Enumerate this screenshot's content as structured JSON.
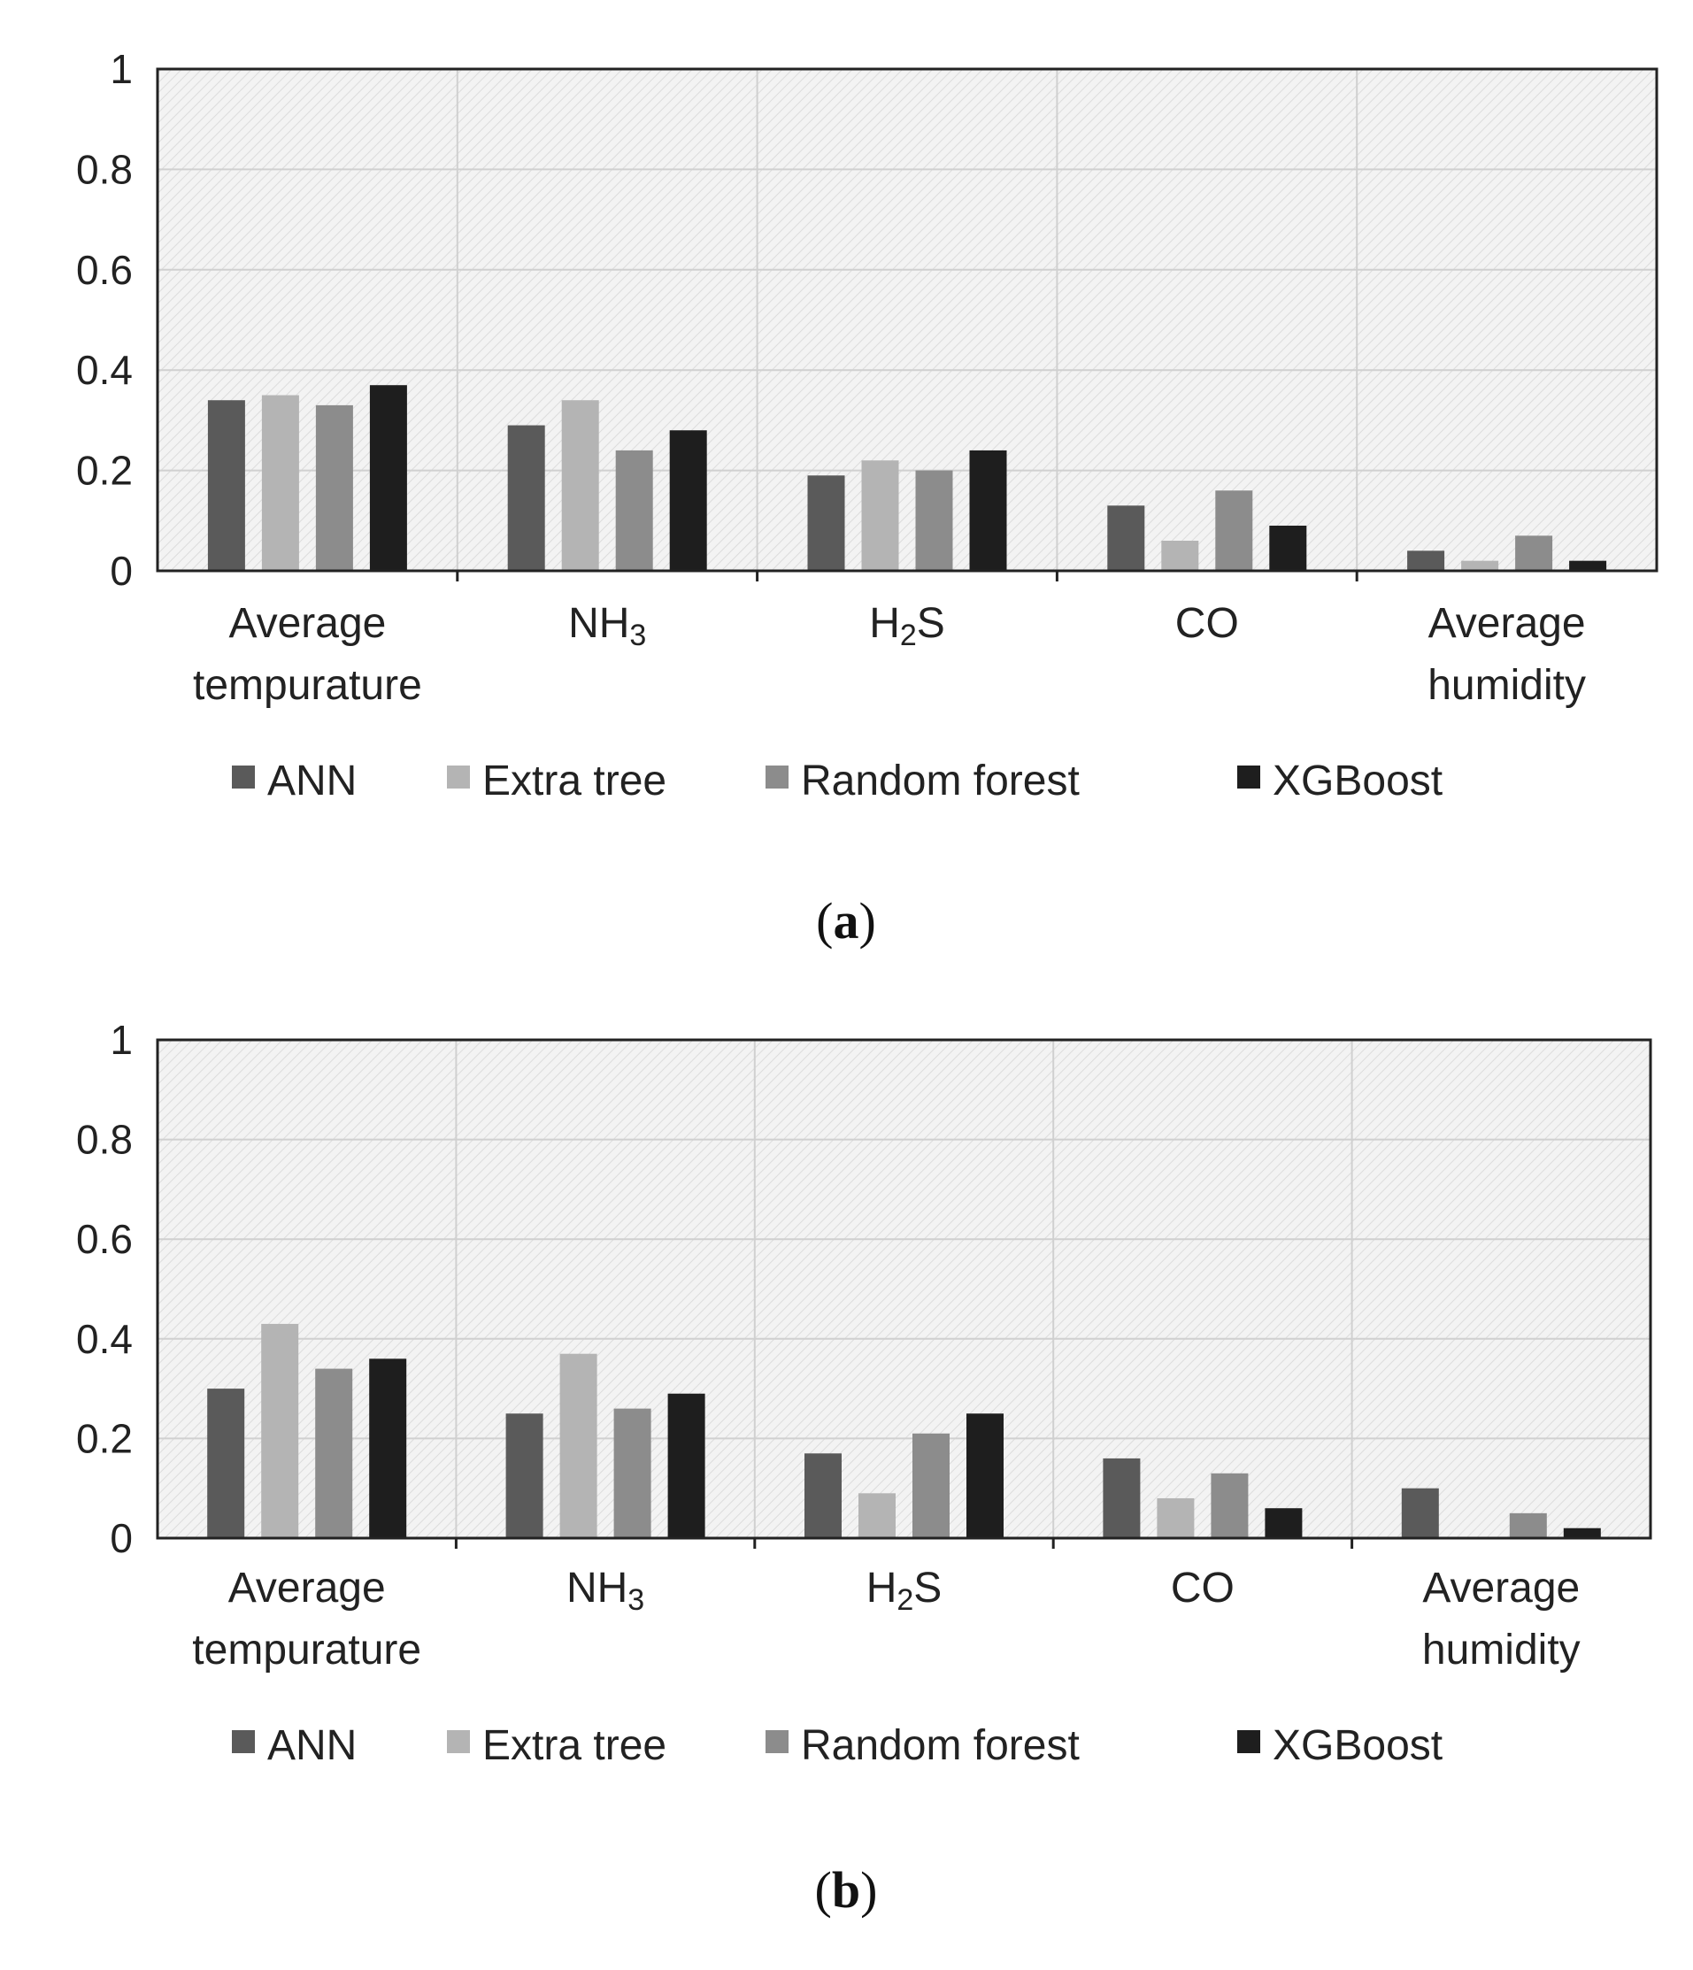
{
  "chart_data": [
    {
      "type": "bar",
      "panel_label": "a",
      "categories": [
        {
          "label": [
            "Average",
            "tempurature"
          ]
        },
        {
          "label": [
            "NH",
            "3"
          ],
          "subscript": true
        },
        {
          "label": [
            "H",
            "2",
            "S"
          ],
          "subscript": true
        },
        {
          "label": [
            "CO"
          ]
        },
        {
          "label": [
            "Average",
            "humidity"
          ]
        }
      ],
      "category_names": [
        "Average tempurature",
        "NH3",
        "H2S",
        "CO",
        "Average humidity"
      ],
      "ylim": [
        0,
        1
      ],
      "yticks": [
        "0",
        "0.2",
        "0.4",
        "0.6",
        "0.8",
        "1"
      ],
      "legend_position": "bottom",
      "grid": true,
      "series": [
        {
          "name": "ANN",
          "color": "#5a5a5a",
          "values": [
            0.34,
            0.29,
            0.19,
            0.13,
            0.04
          ]
        },
        {
          "name": "Extra tree",
          "color": "#b4b4b4",
          "values": [
            0.35,
            0.34,
            0.22,
            0.06,
            0.02
          ]
        },
        {
          "name": "Random forest",
          "color": "#8c8c8c",
          "values": [
            0.33,
            0.24,
            0.2,
            0.16,
            0.07
          ]
        },
        {
          "name": "XGBoost",
          "color": "#1e1e1e",
          "values": [
            0.37,
            0.28,
            0.24,
            0.09,
            0.02
          ]
        }
      ]
    },
    {
      "type": "bar",
      "panel_label": "b",
      "categories": [
        {
          "label": [
            "Average",
            "tempurature"
          ]
        },
        {
          "label": [
            "NH",
            "3"
          ],
          "subscript": true
        },
        {
          "label": [
            "H",
            "2",
            "S"
          ],
          "subscript": true
        },
        {
          "label": [
            "CO"
          ]
        },
        {
          "label": [
            "Average",
            "humidity"
          ]
        }
      ],
      "category_names": [
        "Average tempurature",
        "NH3",
        "H2S",
        "CO",
        "Average humidity"
      ],
      "ylim": [
        0,
        1
      ],
      "yticks": [
        "0",
        "0.2",
        "0.4",
        "0.6",
        "0.8",
        "1"
      ],
      "legend_position": "bottom",
      "grid": true,
      "series": [
        {
          "name": "ANN",
          "color": "#5a5a5a",
          "values": [
            0.3,
            0.25,
            0.17,
            0.16,
            0.1
          ]
        },
        {
          "name": "Extra tree",
          "color": "#b4b4b4",
          "values": [
            0.43,
            0.37,
            0.09,
            0.08,
            0.0
          ]
        },
        {
          "name": "Random forest",
          "color": "#8c8c8c",
          "values": [
            0.34,
            0.26,
            0.21,
            0.13,
            0.05
          ]
        },
        {
          "name": "XGBoost",
          "color": "#1e1e1e",
          "values": [
            0.36,
            0.29,
            0.25,
            0.06,
            0.02
          ]
        }
      ]
    }
  ]
}
